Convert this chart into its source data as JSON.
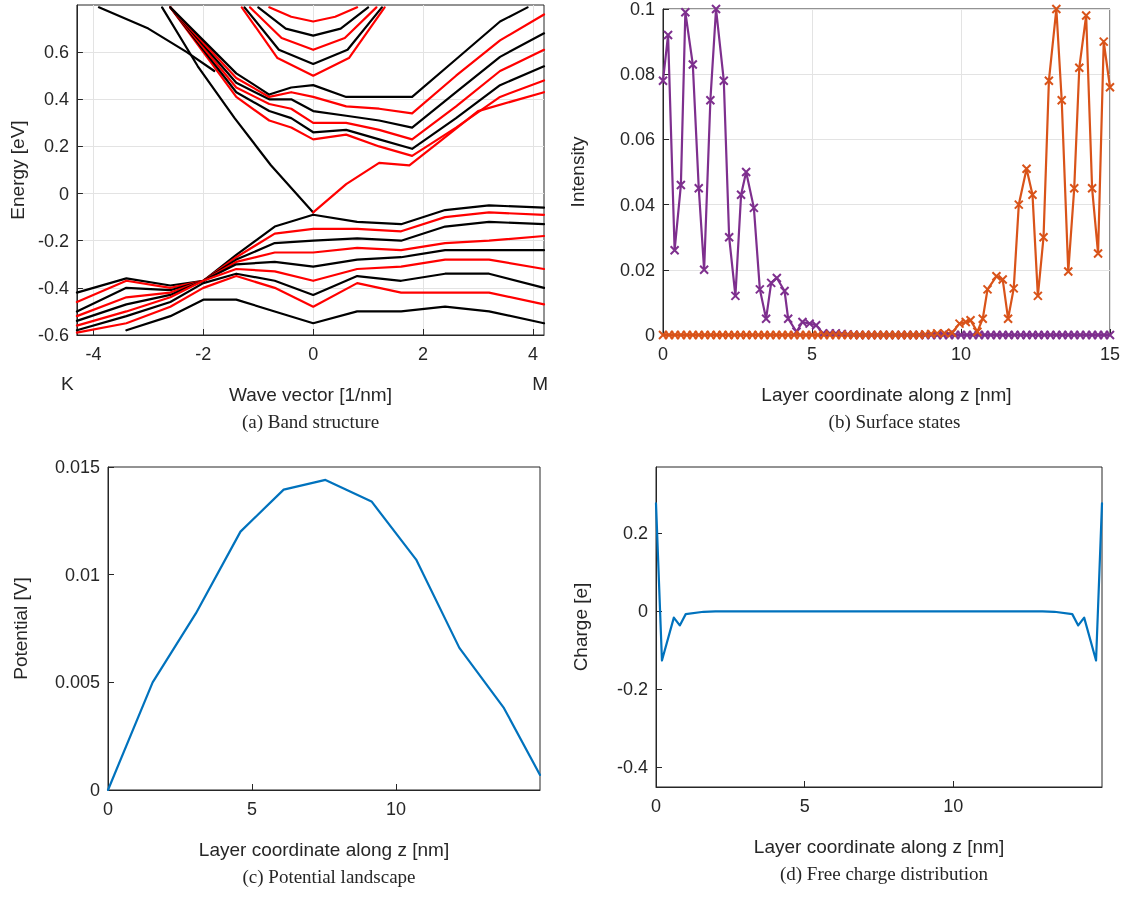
{
  "chart_data": [
    {
      "type": "line",
      "title": "(a) Band structure",
      "xlabel": "Wave vector [1/nm]",
      "ylabel": "Energy [eV]",
      "annotations": [
        "K",
        "M"
      ],
      "xlim": [
        -4.3,
        4.2
      ],
      "xticks": [
        -4,
        -2,
        0,
        2,
        4
      ],
      "ylim": [
        -0.6,
        0.8
      ],
      "yticks": [
        -0.6,
        -0.4,
        -0.2,
        0,
        0.2,
        0.4,
        0.6
      ],
      "grid": true,
      "marker": "none",
      "line_style": "solid",
      "series": [
        {
          "color": "#000000",
          "x": [
            -2.75,
            -2.1,
            -1.43,
            -0.77,
            0
          ],
          "values": [
            0.79,
            0.54,
            0.32,
            0.12,
            -0.08
          ]
        },
        {
          "color": "#ff0000",
          "x": [
            0,
            0.6,
            1.2,
            1.75,
            2.3,
            3.0,
            4.2
          ],
          "values": [
            -0.08,
            0.04,
            0.13,
            0.12,
            0.22,
            0.35,
            0.43
          ]
        },
        {
          "color": "#ff0000",
          "x": [
            -2.6,
            -2.0,
            -1.4,
            -0.8,
            -0.4,
            0,
            0.6,
            1.2,
            1.8,
            2.6,
            3.4,
            4.2
          ],
          "values": [
            0.79,
            0.6,
            0.41,
            0.31,
            0.28,
            0.23,
            0.25,
            0.2,
            0.16,
            0.28,
            0.41,
            0.48
          ]
        },
        {
          "color": "#000000",
          "x": [
            -2.6,
            -2.0,
            -1.4,
            -0.8,
            -0.4,
            0,
            0.6,
            1.2,
            1.8,
            2.6,
            3.4,
            4.2
          ],
          "values": [
            0.79,
            0.61,
            0.43,
            0.35,
            0.32,
            0.26,
            0.27,
            0.23,
            0.19,
            0.32,
            0.46,
            0.54
          ]
        },
        {
          "color": "#ff0000",
          "x": [
            -2.6,
            -2.0,
            -1.4,
            -0.8,
            -0.4,
            0,
            0.6,
            1.2,
            1.8,
            2.6,
            3.4,
            4.2
          ],
          "values": [
            0.79,
            0.62,
            0.45,
            0.38,
            0.36,
            0.3,
            0.3,
            0.27,
            0.23,
            0.37,
            0.52,
            0.61
          ]
        },
        {
          "color": "#000000",
          "x": [
            -2.6,
            -2.0,
            -1.4,
            -0.8,
            -0.4,
            0,
            0.6,
            1.2,
            1.8,
            2.6,
            3.4,
            4.2
          ],
          "values": [
            0.79,
            0.63,
            0.47,
            0.4,
            0.4,
            0.35,
            0.33,
            0.31,
            0.28,
            0.43,
            0.58,
            0.68
          ]
        },
        {
          "color": "#ff0000",
          "x": [
            -2.6,
            -2.0,
            -1.4,
            -0.8,
            -0.4,
            0,
            0.6,
            1.2,
            1.8,
            2.6,
            3.4,
            4.2
          ],
          "values": [
            0.79,
            0.64,
            0.49,
            0.41,
            0.43,
            0.41,
            0.37,
            0.36,
            0.34,
            0.5,
            0.65,
            0.76
          ]
        },
        {
          "color": "#000000",
          "x": [
            -2.6,
            -2.0,
            -1.4,
            -0.8,
            -0.4,
            0,
            0.6,
            1.2,
            1.8,
            2.6,
            3.4,
            3.9
          ],
          "values": [
            0.79,
            0.65,
            0.51,
            0.42,
            0.45,
            0.46,
            0.41,
            0.41,
            0.41,
            0.57,
            0.73,
            0.79
          ]
        },
        {
          "color": "#000000",
          "x": [
            -3.9,
            -3.0,
            -2.3,
            -1.8
          ],
          "values": [
            0.79,
            0.7,
            0.6,
            0.52
          ]
        },
        {
          "color": "#ff0000",
          "x": [
            -1.3,
            -0.65,
            0,
            0.65,
            1.3
          ],
          "values": [
            0.79,
            0.575,
            0.5,
            0.575,
            0.79
          ]
        },
        {
          "color": "#000000",
          "x": [
            -1.25,
            -0.625,
            0,
            0.625,
            1.25
          ],
          "values": [
            0.79,
            0.61,
            0.55,
            0.61,
            0.79
          ]
        },
        {
          "color": "#ff0000",
          "x": [
            -1.15,
            -0.575,
            0,
            0.575,
            1.15
          ],
          "values": [
            0.79,
            0.66,
            0.61,
            0.66,
            0.79
          ]
        },
        {
          "color": "#000000",
          "x": [
            -1.0,
            -0.5,
            0,
            0.5,
            1.0
          ],
          "values": [
            0.79,
            0.7,
            0.67,
            0.7,
            0.79
          ]
        },
        {
          "color": "#ff0000",
          "x": [
            -0.8,
            -0.4,
            0,
            0.4,
            0.8
          ],
          "values": [
            0.79,
            0.75,
            0.73,
            0.75,
            0.79
          ]
        },
        {
          "color": "#000000",
          "x": [
            -4.3,
            -3.4,
            -2.6,
            -2.0,
            -1.4,
            -0.7,
            0,
            0.8,
            1.6,
            2.4,
            3.2,
            4.2
          ],
          "values": [
            -0.42,
            -0.36,
            -0.39,
            -0.37,
            -0.26,
            -0.14,
            -0.09,
            -0.12,
            -0.13,
            -0.07,
            -0.05,
            -0.06
          ]
        },
        {
          "color": "#ff0000",
          "x": [
            -4.3,
            -3.4,
            -2.6,
            -2.0,
            -1.4,
            -0.7,
            0,
            0.8,
            1.6,
            2.4,
            3.2,
            4.2
          ],
          "values": [
            -0.46,
            -0.37,
            -0.4,
            -0.37,
            -0.27,
            -0.17,
            -0.15,
            -0.15,
            -0.16,
            -0.1,
            -0.08,
            -0.09
          ]
        },
        {
          "color": "#000000",
          "x": [
            -4.3,
            -3.4,
            -2.6,
            -2.0,
            -1.4,
            -0.7,
            0,
            0.8,
            1.6,
            2.4,
            3.2,
            4.2
          ],
          "values": [
            -0.5,
            -0.4,
            -0.41,
            -0.37,
            -0.28,
            -0.21,
            -0.2,
            -0.19,
            -0.2,
            -0.14,
            -0.12,
            -0.13
          ]
        },
        {
          "color": "#ff0000",
          "x": [
            -4.3,
            -3.4,
            -2.6,
            -2.0,
            -1.4,
            -0.7,
            0,
            0.8,
            1.6,
            2.4,
            3.2,
            4.2
          ],
          "values": [
            -0.52,
            -0.44,
            -0.42,
            -0.37,
            -0.29,
            -0.25,
            -0.25,
            -0.23,
            -0.24,
            -0.21,
            -0.2,
            -0.18
          ]
        },
        {
          "color": "#000000",
          "x": [
            -4.3,
            -3.4,
            -2.6,
            -2.0,
            -1.4,
            -0.7,
            0,
            0.8,
            1.6,
            2.4,
            3.2,
            4.2
          ],
          "values": [
            -0.54,
            -0.47,
            -0.43,
            -0.37,
            -0.3,
            -0.29,
            -0.31,
            -0.28,
            -0.27,
            -0.24,
            -0.24,
            -0.24
          ]
        },
        {
          "color": "#ff0000",
          "x": [
            -4.3,
            -3.4,
            -2.6,
            -2.0,
            -1.4,
            -0.7,
            0,
            0.8,
            1.6,
            2.4,
            3.2,
            4.2
          ],
          "values": [
            -0.56,
            -0.5,
            -0.44,
            -0.37,
            -0.32,
            -0.33,
            -0.37,
            -0.32,
            -0.31,
            -0.28,
            -0.28,
            -0.32
          ]
        },
        {
          "color": "#000000",
          "x": [
            -4.3,
            -3.4,
            -2.6,
            -2.0,
            -1.4,
            -0.7,
            0,
            0.8,
            1.6,
            2.4,
            3.2,
            4.2
          ],
          "values": [
            -0.58,
            -0.52,
            -0.46,
            -0.38,
            -0.34,
            -0.37,
            -0.43,
            -0.35,
            -0.37,
            -0.34,
            -0.34,
            -0.4
          ]
        },
        {
          "color": "#ff0000",
          "x": [
            -4.3,
            -3.4,
            -2.6,
            -2.0,
            -1.4,
            -0.7,
            0,
            0.8,
            1.6,
            2.4,
            3.2,
            4.2
          ],
          "values": [
            -0.59,
            -0.55,
            -0.48,
            -0.4,
            -0.35,
            -0.4,
            -0.48,
            -0.38,
            -0.42,
            -0.42,
            -0.42,
            -0.47
          ]
        },
        {
          "color": "#000000",
          "x": [
            -3.4,
            -2.6,
            -2.0,
            -1.4,
            -0.7,
            0,
            0.8,
            1.6,
            2.4,
            3.2,
            4.2
          ],
          "values": [
            -0.58,
            -0.52,
            -0.45,
            -0.45,
            -0.5,
            -0.55,
            -0.5,
            -0.5,
            -0.48,
            -0.5,
            -0.55
          ]
        }
      ]
    },
    {
      "type": "line",
      "title": "(b) Surface states",
      "xlabel": "Layer coordinate along z [nm]",
      "ylabel": "Intensity",
      "xlim": [
        0,
        15
      ],
      "xticks": [
        0,
        5,
        10,
        15
      ],
      "ylim": [
        0,
        0.1
      ],
      "yticks": [
        0,
        0.02,
        0.04,
        0.06,
        0.08,
        0.1
      ],
      "grid": true,
      "marker": "cross",
      "line_style": "solid",
      "series": [
        {
          "color": "#7e2f8e",
          "x": [
            0,
            0.17,
            0.39,
            0.6,
            0.75,
            1.0,
            1.2,
            1.38,
            1.59,
            1.78,
            2.04,
            2.22,
            2.43,
            2.62,
            2.79,
            3.05,
            3.25,
            3.46,
            3.63,
            3.82,
            4.08,
            4.2,
            4.48,
            4.68,
            4.92,
            5.14,
            5.37,
            5.6,
            5.8,
            6.0,
            6.2,
            6.4,
            6.6,
            6.8,
            7.0,
            7.2,
            7.4,
            7.6,
            7.8,
            8.0,
            8.2,
            8.4,
            8.6,
            8.8,
            9.0,
            9.2,
            9.4,
            9.6,
            9.8,
            10.0,
            10.2,
            10.4,
            10.6,
            10.8,
            11.0,
            11.2,
            11.4,
            11.6,
            11.8,
            12.0,
            12.2,
            12.4,
            12.6,
            12.8,
            13.0,
            13.2,
            13.4,
            13.6,
            13.8,
            14.0,
            14.2,
            14.4,
            14.6,
            14.8,
            15.0
          ],
          "values": [
            0.078,
            0.092,
            0.026,
            0.046,
            0.099,
            0.083,
            0.045,
            0.02,
            0.072,
            0.1,
            0.078,
            0.03,
            0.012,
            0.043,
            0.05,
            0.039,
            0.014,
            0.005,
            0.016,
            0.0175,
            0.0135,
            0.005,
            0.001,
            0.004,
            0.0035,
            0.003,
            0.0005,
            0.0005,
            0.0005,
            0.0003,
            0.0002,
            0.0001,
            0,
            0,
            0,
            0,
            0,
            0,
            0,
            0,
            0,
            0,
            0,
            0,
            0,
            0,
            0,
            0,
            0,
            0,
            0,
            0,
            0,
            0,
            0,
            0,
            0,
            0,
            0,
            0,
            0,
            0,
            0,
            0,
            0,
            0,
            0,
            0,
            0,
            0,
            0,
            0,
            0,
            0,
            0
          ]
        },
        {
          "color": "#d95319",
          "x": [
            0,
            0.2,
            0.4,
            0.6,
            0.8,
            1.0,
            1.2,
            1.4,
            1.6,
            1.8,
            2.0,
            2.2,
            2.4,
            2.6,
            2.8,
            3.0,
            3.2,
            3.4,
            3.6,
            3.8,
            4.0,
            4.2,
            4.4,
            4.6,
            4.8,
            5.0,
            5.2,
            5.4,
            5.6,
            5.8,
            6.0,
            6.2,
            6.4,
            6.6,
            6.8,
            7.0,
            7.2,
            7.4,
            7.6,
            7.8,
            8.0,
            8.2,
            8.4,
            8.6,
            8.8,
            9.0,
            9.2,
            9.45,
            9.7,
            9.95,
            10.16,
            10.32,
            10.55,
            10.73,
            10.89,
            11.19,
            11.4,
            11.58,
            11.77,
            11.94,
            12.2,
            12.4,
            12.58,
            12.77,
            12.95,
            13.2,
            13.38,
            13.6,
            13.8,
            13.97,
            14.2,
            14.4,
            14.6,
            14.79,
            15.0
          ],
          "values": [
            0,
            0,
            0,
            0,
            0,
            0,
            0,
            0,
            0,
            0,
            0,
            0,
            0,
            0,
            0,
            0,
            0,
            0,
            0,
            0,
            0,
            0,
            0,
            0,
            0,
            0,
            0,
            0,
            0,
            0,
            0,
            0,
            0,
            0,
            0,
            0,
            0,
            0,
            0,
            0,
            0,
            0,
            0,
            0,
            0.0002,
            0.0003,
            0.0005,
            0.0005,
            0.0007,
            0.0035,
            0.004,
            0.0045,
            0.001,
            0.005,
            0.014,
            0.018,
            0.017,
            0.005,
            0.0143,
            0.04,
            0.051,
            0.043,
            0.012,
            0.03,
            0.078,
            0.1,
            0.072,
            0.0195,
            0.045,
            0.082,
            0.098,
            0.045,
            0.025,
            0.09,
            0.076
          ]
        }
      ]
    },
    {
      "type": "line",
      "title": "(c) Potential landscape",
      "xlabel": "Layer coordinate along z [nm]",
      "ylabel": "Potential [V]",
      "xlim": [
        0,
        15
      ],
      "xticks": [
        0,
        5,
        10
      ],
      "ylim": [
        0,
        0.015
      ],
      "yticks": [
        0,
        0.005,
        0.01,
        0.015
      ],
      "marker": "none",
      "line_style": "solid",
      "series": [
        {
          "color": "#0072bd",
          "x": [
            0,
            1.55,
            3.05,
            4.6,
            6.1,
            7.55,
            9.15,
            10.7,
            12.2,
            13.75,
            15.0
          ],
          "values": [
            0,
            0.005,
            0.0082,
            0.012,
            0.01395,
            0.0144,
            0.0134,
            0.0107,
            0.0066,
            0.0038,
            0.0007
          ]
        }
      ]
    },
    {
      "type": "line",
      "title": "(d) Free charge distribution",
      "xlabel": "Layer coordinate along z [nm]",
      "ylabel": "Charge [e]",
      "xlim": [
        0,
        15
      ],
      "xticks": [
        0,
        5,
        10
      ],
      "ylim": [
        -0.45,
        0.37
      ],
      "yticks": [
        -0.4,
        -0.2,
        0,
        0.2
      ],
      "marker": "none",
      "line_style": "solid",
      "series": [
        {
          "color": "#0072bd",
          "x": [
            0,
            0.2,
            0.6,
            0.8,
            1.0,
            1.6,
            2,
            3,
            4,
            5,
            6,
            7,
            8,
            9,
            10,
            11,
            12,
            13,
            13.4,
            14.0,
            14.2,
            14.4,
            14.8,
            15.0
          ],
          "values": [
            0.277,
            -0.126,
            -0.016,
            -0.036,
            -0.007,
            -0.001,
            0,
            0,
            0,
            0,
            0,
            0,
            0,
            0,
            0,
            0,
            0,
            0,
            -0.001,
            -0.007,
            -0.036,
            -0.016,
            -0.126,
            0.277
          ]
        }
      ]
    }
  ]
}
